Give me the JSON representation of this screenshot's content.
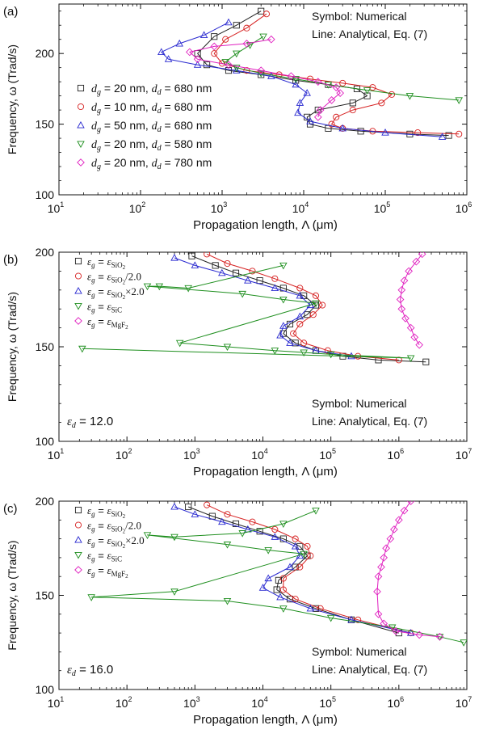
{
  "charts": [
    {
      "panel_label": "(a)",
      "ylabel": "Frequency, ω (Trad/s)",
      "xlabel": "Propagation length, Λ (μm)",
      "annotation_lines": [
        "Symbol: Numerical",
        "Line: Analytical, Eq. (7)"
      ],
      "x_tick_labels": [
        {
          "base": "10",
          "exp": "1"
        },
        {
          "base": "10",
          "exp": "2"
        },
        {
          "base": "10",
          "exp": "3"
        },
        {
          "base": "10",
          "exp": "4"
        },
        {
          "base": "10",
          "exp": "5"
        },
        {
          "base": "10",
          "exp": "6"
        }
      ],
      "y_tick_labels": [
        "100",
        "150",
        "200"
      ],
      "legend": [
        {
          "sym": "d",
          "sub1": "g",
          "val1": " = 20 nm, ",
          "sub2": "d",
          "val2": " = 680 nm"
        },
        {
          "sym": "d",
          "sub1": "g",
          "val1": " = 10 nm, ",
          "sub2": "d",
          "val2": " = 680 nm"
        },
        {
          "sym": "d",
          "sub1": "g",
          "val1": " = 50 nm, ",
          "sub2": "d",
          "val2": " = 680 nm"
        },
        {
          "sym": "d",
          "sub1": "g",
          "val1": " = 20 nm, ",
          "sub2": "d",
          "val2": " = 580 nm"
        },
        {
          "sym": "d",
          "sub1": "g",
          "val1": " = 20 nm, ",
          "sub2": "d",
          "val2": " = 780 nm"
        }
      ],
      "extra_note": null
    },
    {
      "panel_label": "(b)",
      "ylabel": "Frequency, ω (Trad/s)",
      "xlabel": "Propagation length, Λ (μm)",
      "annotation_lines": [
        "Symbol: Numerical",
        "Line: Analytical, Eq. (7)"
      ],
      "x_tick_labels": [
        {
          "base": "10",
          "exp": "1"
        },
        {
          "base": "10",
          "exp": "2"
        },
        {
          "base": "10",
          "exp": "3"
        },
        {
          "base": "10",
          "exp": "4"
        },
        {
          "base": "10",
          "exp": "5"
        },
        {
          "base": "10",
          "exp": "6"
        },
        {
          "base": "10",
          "exp": "7"
        }
      ],
      "y_tick_labels": [
        "100",
        "150",
        "200"
      ],
      "legend": [
        {
          "eps": "ε",
          "sub": "g",
          "rhs": "ε",
          "rhs_sub": "SiO",
          "rhs_sub2": "2",
          "suffix": ""
        },
        {
          "eps": "ε",
          "sub": "g",
          "rhs": "ε",
          "rhs_sub": "SiO",
          "rhs_sub2": "2",
          "suffix": "/2.0"
        },
        {
          "eps": "ε",
          "sub": "g",
          "rhs": "ε",
          "rhs_sub": "SiO",
          "rhs_sub2": "2",
          "suffix": "×2.0"
        },
        {
          "eps": "ε",
          "sub": "g",
          "rhs": "ε",
          "rhs_sub": "SiC",
          "rhs_sub2": "",
          "suffix": ""
        },
        {
          "eps": "ε",
          "sub": "g",
          "rhs": "ε",
          "rhs_sub": "MgF",
          "rhs_sub2": "2",
          "suffix": ""
        }
      ],
      "extra_note": {
        "eps": "ε",
        "sub": "d",
        "text": " = 12.0"
      }
    },
    {
      "panel_label": "(c)",
      "ylabel": "Frequency, ω (Trad/s)",
      "xlabel": "Propagation length, Λ (μm)",
      "annotation_lines": [
        "Symbol: Numerical",
        "Line: Analytical, Eq. (7)"
      ],
      "x_tick_labels": [
        {
          "base": "10",
          "exp": "1"
        },
        {
          "base": "10",
          "exp": "2"
        },
        {
          "base": "10",
          "exp": "3"
        },
        {
          "base": "10",
          "exp": "4"
        },
        {
          "base": "10",
          "exp": "5"
        },
        {
          "base": "10",
          "exp": "6"
        },
        {
          "base": "10",
          "exp": "7"
        }
      ],
      "y_tick_labels": [
        "100",
        "150",
        "200"
      ],
      "legend": [
        {
          "eps": "ε",
          "sub": "g",
          "rhs": "ε",
          "rhs_sub": "SiO",
          "rhs_sub2": "2",
          "suffix": ""
        },
        {
          "eps": "ε",
          "sub": "g",
          "rhs": "ε",
          "rhs_sub": "SiO",
          "rhs_sub2": "2",
          "suffix": "/2.0"
        },
        {
          "eps": "ε",
          "sub": "g",
          "rhs": "ε",
          "rhs_sub": "SiO",
          "rhs_sub2": "2",
          "suffix": "×2.0"
        },
        {
          "eps": "ε",
          "sub": "g",
          "rhs": "ε",
          "rhs_sub": "SiC",
          "rhs_sub2": "",
          "suffix": ""
        },
        {
          "eps": "ε",
          "sub": "g",
          "rhs": "ε",
          "rhs_sub": "MgF",
          "rhs_sub2": "2",
          "suffix": ""
        }
      ],
      "extra_note": {
        "eps": "ε",
        "sub": "d",
        "text": " = 16.0"
      }
    }
  ],
  "chart_data": [
    {
      "type": "scatter",
      "xscale": "log",
      "xlim": [
        10,
        1000000
      ],
      "ylim": [
        100,
        235
      ],
      "yticks": [
        100,
        150,
        200
      ],
      "series": [
        {
          "marker": "square",
          "color": "#222222",
          "x": [
            3000,
            1500,
            800,
            500,
            650,
            1200,
            3000,
            8000,
            20000,
            45000,
            60000,
            40000,
            15000,
            11000,
            12000,
            20000,
            50000,
            200000,
            600000
          ],
          "y": [
            230,
            220,
            212,
            200,
            192,
            188,
            185,
            181,
            178,
            175,
            170,
            165,
            160,
            155,
            150,
            147,
            145,
            143,
            142
          ]
        },
        {
          "marker": "circle",
          "color": "#d62020",
          "x": [
            3500,
            2000,
            1100,
            800,
            1000,
            2000,
            5000,
            12000,
            30000,
            70000,
            120000,
            90000,
            40000,
            25000,
            22000,
            30000,
            70000,
            250000,
            800000
          ],
          "y": [
            228,
            218,
            210,
            200,
            193,
            188,
            185,
            182,
            179,
            176,
            171,
            165,
            160,
            155,
            150,
            147,
            145,
            144,
            143
          ]
        },
        {
          "marker": "triangle-up",
          "color": "#2a2ad0",
          "x": [
            1200,
            600,
            300,
            180,
            220,
            500,
            1500,
            4000,
            8000,
            11000,
            9000,
            8500,
            12000,
            30000,
            100000,
            500000
          ],
          "y": [
            222,
            213,
            207,
            201,
            196,
            192,
            188,
            184,
            178,
            172,
            165,
            158,
            152,
            147,
            144,
            141
          ]
        },
        {
          "marker": "triangle-down",
          "color": "#1f8f1f",
          "x": [
            3200,
            2200,
            1500,
            1100,
            1500,
            3000,
            8000,
            20000,
            60000,
            200000,
            800000
          ],
          "y": [
            212,
            206,
            200,
            194,
            190,
            186,
            182,
            178,
            174,
            170,
            167
          ]
        },
        {
          "marker": "diamond",
          "color": "#e020c0",
          "x": [
            4000,
            2000,
            800,
            400,
            500,
            1200,
            3000,
            7000,
            15000,
            25000,
            28000,
            22000,
            16000,
            15000
          ],
          "y": [
            210,
            207,
            205,
            201,
            196,
            192,
            188,
            184,
            180,
            176,
            172,
            167,
            160,
            155
          ]
        }
      ]
    },
    {
      "type": "scatter",
      "xscale": "log",
      "xlim": [
        10,
        10000000
      ],
      "ylim": [
        100,
        200
      ],
      "yticks": [
        100,
        150,
        200
      ],
      "series": [
        {
          "marker": "square",
          "color": "#222222",
          "x": [
            900,
            2000,
            4000,
            9000,
            20000,
            40000,
            60000,
            45000,
            25000,
            20000,
            30000,
            60000,
            150000,
            500000,
            2500000
          ],
          "y": [
            198,
            193,
            189,
            185,
            181,
            177,
            172,
            167,
            162,
            157,
            152,
            148,
            145,
            143,
            142
          ]
        },
        {
          "marker": "circle",
          "color": "#d62020",
          "x": [
            1500,
            3000,
            7000,
            15000,
            35000,
            60000,
            75000,
            55000,
            35000,
            28000,
            40000,
            90000,
            250000,
            1000000
          ],
          "y": [
            199,
            194,
            190,
            186,
            181,
            177,
            172,
            167,
            162,
            157,
            152,
            148,
            145,
            143
          ]
        },
        {
          "marker": "triangle-up",
          "color": "#2a2ad0",
          "x": [
            500,
            1000,
            2500,
            6000,
            15000,
            35000,
            50000,
            35000,
            20000,
            18000,
            25000,
            60000,
            200000
          ],
          "y": [
            197,
            193,
            189,
            185,
            181,
            177,
            172,
            166,
            161,
            156,
            152,
            148,
            145
          ]
        },
        {
          "marker": "triangle-down",
          "color": "#1f8f1f",
          "x": [
            20000,
            800,
            300,
            200,
            5000,
            20000,
            60000,
            600,
            3000,
            15000,
            40000,
            100000,
            1500000,
            22
          ],
          "y": [
            193,
            181,
            182,
            182,
            178,
            175,
            173,
            152,
            150,
            148,
            147,
            146,
            144,
            149
          ]
        },
        {
          "marker": "diamond",
          "color": "#e020c0",
          "x": [
            2200000,
            1800000,
            1400000,
            1200000,
            1100000,
            1050000,
            1100000,
            1250000,
            1500000,
            1700000,
            2000000
          ],
          "y": [
            199,
            195,
            190,
            185,
            180,
            175,
            170,
            165,
            160,
            155,
            151
          ]
        }
      ]
    },
    {
      "type": "scatter",
      "xscale": "log",
      "xlim": [
        10,
        10000000
      ],
      "ylim": [
        100,
        200
      ],
      "yticks": [
        100,
        150,
        200
      ],
      "series": [
        {
          "marker": "square",
          "color": "#222222",
          "x": [
            800,
            1800,
            4000,
            9000,
            20000,
            35000,
            45000,
            30000,
            17000,
            16000,
            25000,
            60000,
            200000,
            1000000
          ],
          "y": [
            197,
            192,
            188,
            184,
            180,
            176,
            171,
            165,
            158,
            153,
            148,
            143,
            137,
            130
          ]
        },
        {
          "marker": "circle",
          "color": "#d62020",
          "x": [
            1500,
            3000,
            7000,
            15000,
            30000,
            45000,
            50000,
            35000,
            20000,
            20000,
            30000,
            70000,
            250000,
            1500000
          ],
          "y": [
            198,
            193,
            189,
            185,
            180,
            176,
            171,
            165,
            159,
            153,
            148,
            143,
            137,
            130
          ]
        },
        {
          "marker": "triangle-up",
          "color": "#2a2ad0",
          "x": [
            500,
            1000,
            2500,
            6000,
            15000,
            30000,
            35000,
            25000,
            12000,
            10000,
            18000,
            50000,
            200000,
            1500000
          ],
          "y": [
            197,
            193,
            189,
            185,
            181,
            176,
            171,
            165,
            159,
            154,
            149,
            143,
            137,
            130
          ]
        },
        {
          "marker": "triangle-down",
          "color": "#1f8f1f",
          "x": [
            60000,
            20000,
            5000,
            500,
            200,
            3000,
            12000,
            40000,
            500,
            30,
            3000,
            20000,
            100000,
            800000,
            4000000,
            9000000
          ],
          "y": [
            195,
            188,
            183,
            181,
            182,
            177,
            174,
            172,
            152,
            149,
            147,
            143,
            138,
            133,
            128,
            125
          ]
        },
        {
          "marker": "diamond",
          "color": "#e020c0",
          "x": [
            1500000,
            1200000,
            1000000,
            850000,
            750000,
            650000,
            600000,
            550000,
            500000,
            480000,
            500000,
            600000,
            900000,
            2000000,
            4000000
          ],
          "y": [
            200,
            195,
            190,
            185,
            180,
            175,
            170,
            165,
            160,
            152,
            140,
            135,
            131,
            129,
            128
          ]
        }
      ]
    }
  ]
}
